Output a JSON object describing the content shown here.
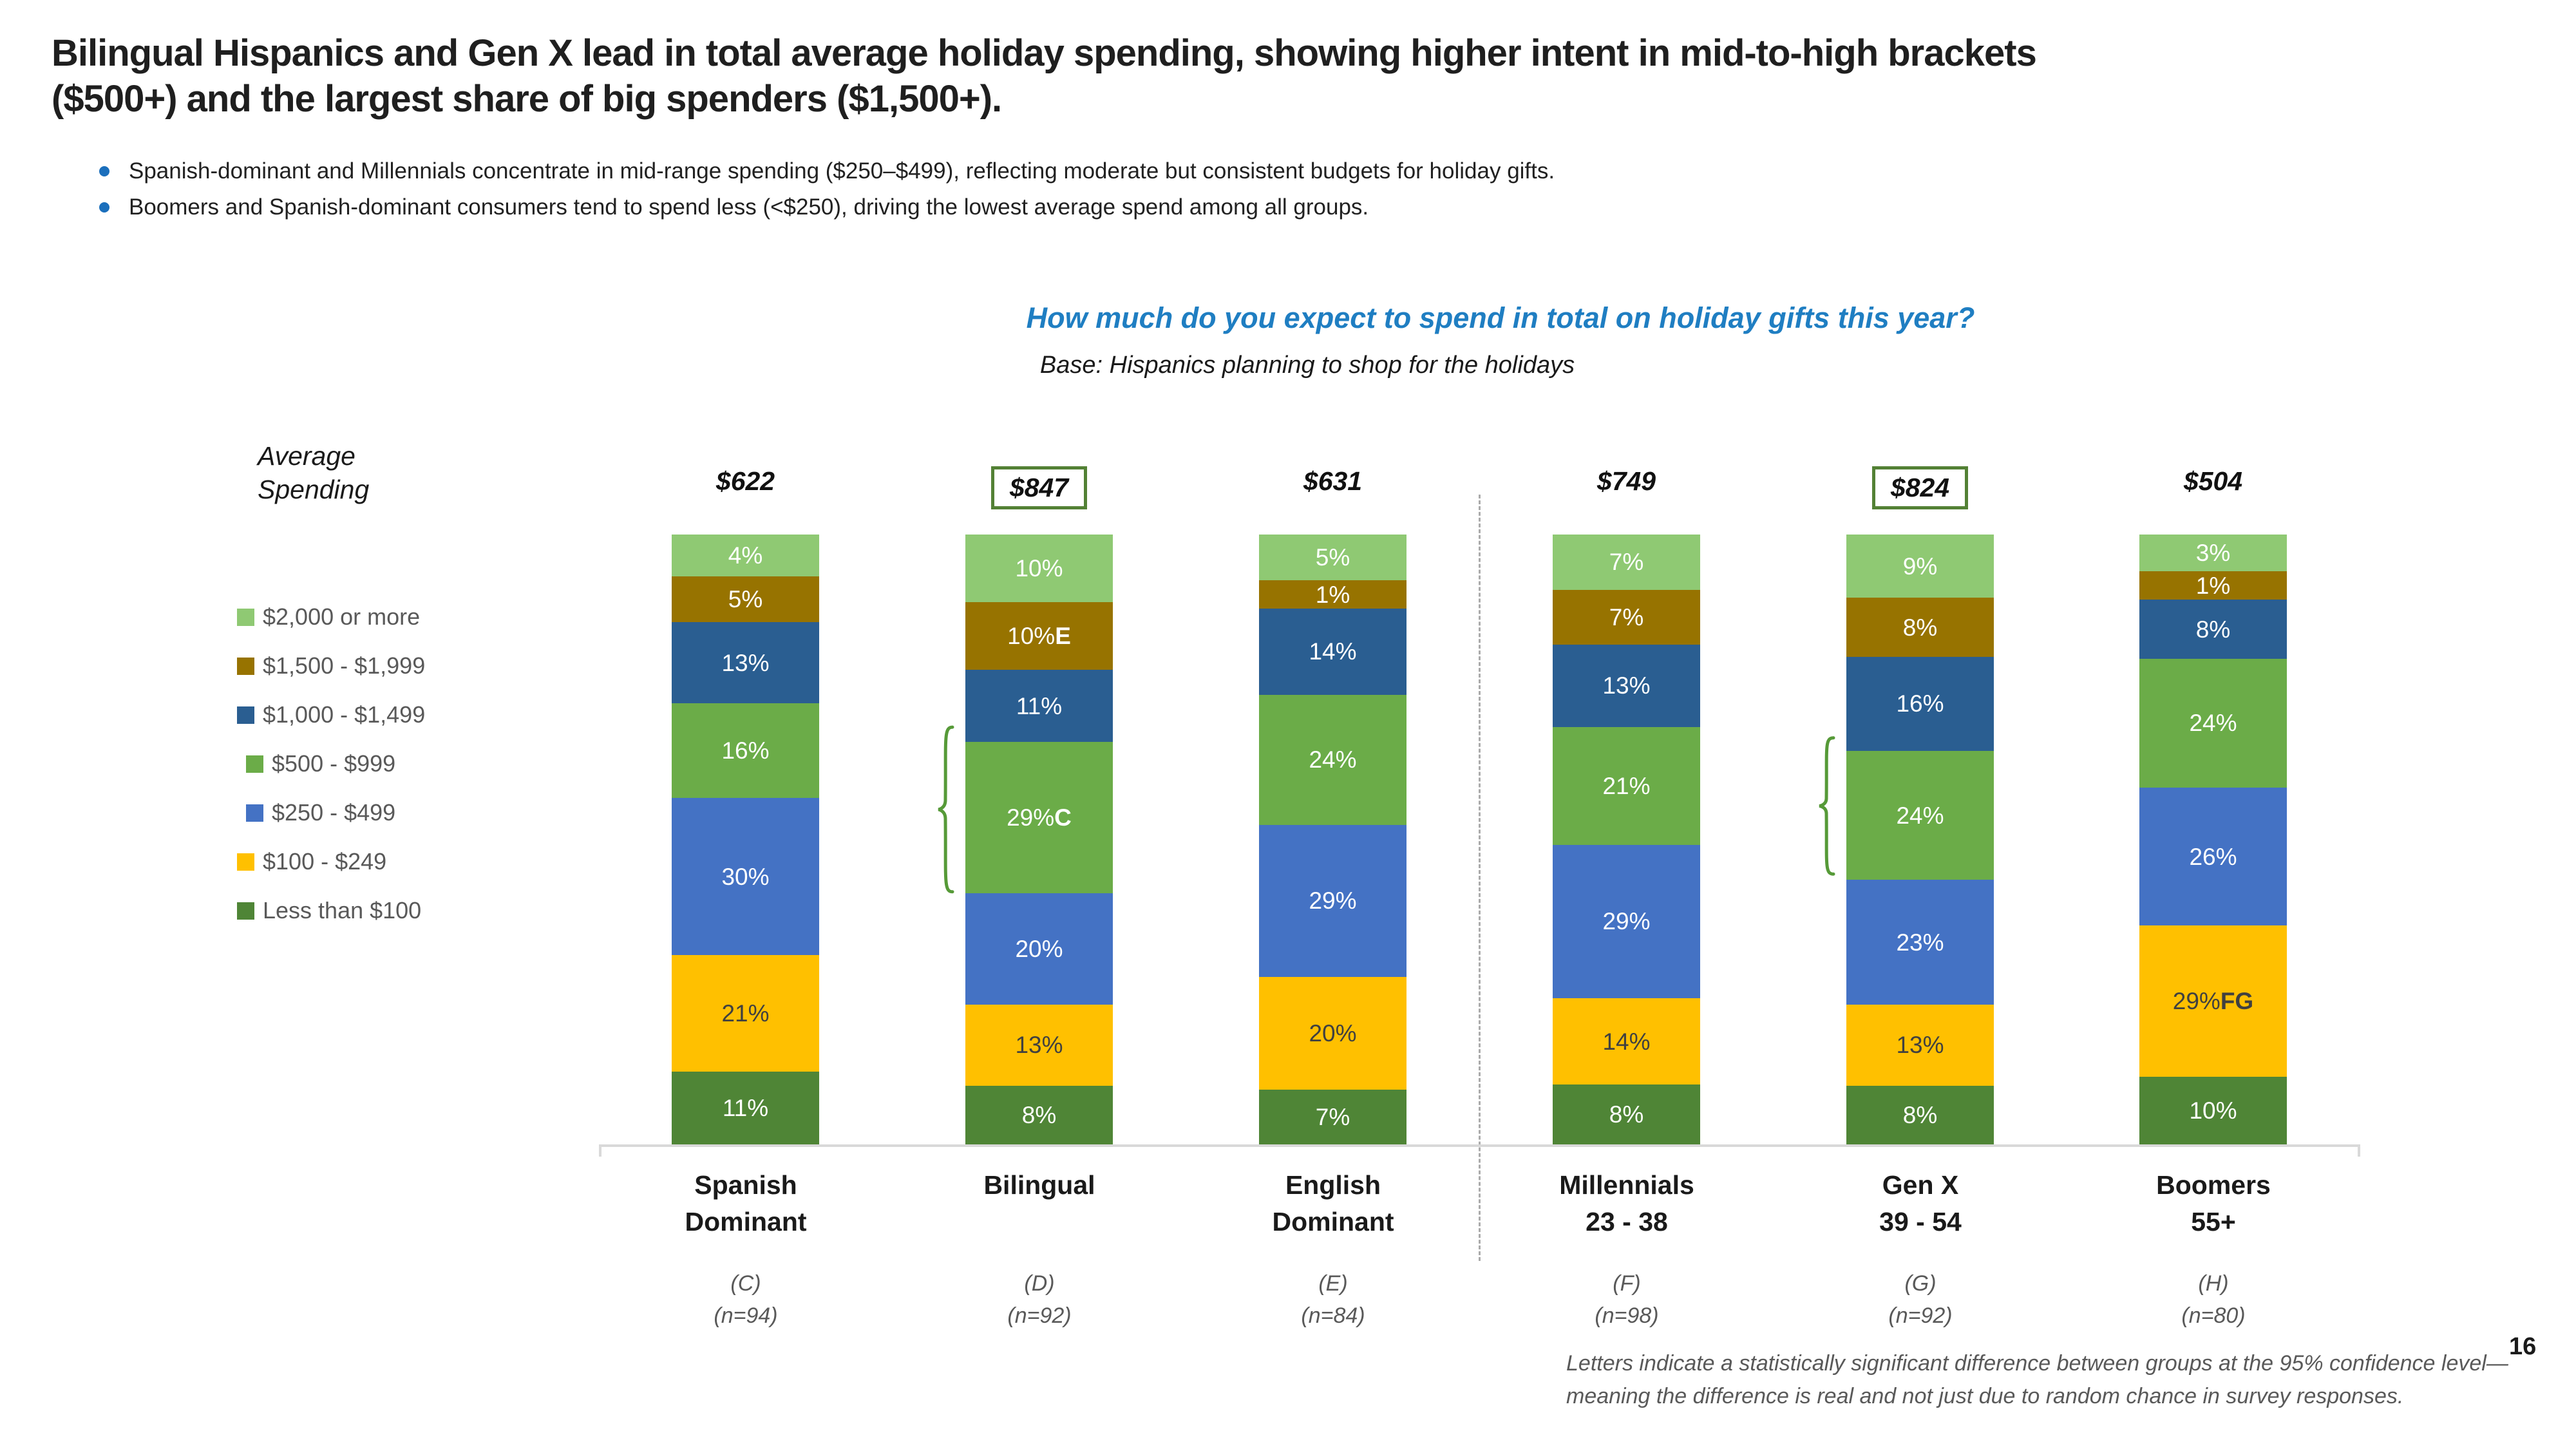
{
  "title": {
    "line1": "Bilingual Hispanics and Gen X lead in total average holiday spending, showing higher intent in mid-to-high brackets",
    "line2": "($500+) and the largest share of big spenders ($1,500+)."
  },
  "bullets": [
    "Spanish-dominant and Millennials concentrate in mid-range spending ($250–$499), reflecting moderate but consistent budgets for holiday gifts.",
    "Boomers and Spanish-dominant consumers tend to spend less (<$250), driving the lowest average spend among all groups."
  ],
  "question": "How much do you expect to spend in total on holiday gifts this year?",
  "base": "Base: Hispanics planning to shop for the holidays",
  "avg_label": {
    "line1": "Average",
    "line2": "Spending"
  },
  "legend": {
    "items": [
      {
        "label": "$2,000 or more",
        "color": "#8FC973"
      },
      {
        "label": "$1,500 - $1,999",
        "color": "#977300"
      },
      {
        "label": "$1,000 - $1,499",
        "color": "#2A5E91"
      },
      {
        "label": "$500 - $999",
        "color": "#6BAC48"
      },
      {
        "label": "$250 - $499",
        "color": "#4472C4"
      },
      {
        "label": "$100 - $249",
        "color": "#FFC000"
      },
      {
        "label": "Less than $100",
        "color": "#4F8536"
      }
    ]
  },
  "chart_data": {
    "type": "bar",
    "subtype": "100%-stacked-column",
    "unit": "%",
    "title": "How much do you expect to spend in total on holiday gifts this year?",
    "stack_order_top_to_bottom": [
      "$2,000 or more",
      "$1,500 - $1,999",
      "$1,000 - $1,499",
      "$500 - $999",
      "$250 - $499",
      "$100 - $249",
      "Less than $100"
    ],
    "groups": [
      {
        "name": [
          "Spanish",
          "Dominant"
        ],
        "code": "(C)",
        "n": "(n=94)",
        "average": "$622",
        "average_boxed": false,
        "values": [
          4,
          5,
          13,
          16,
          30,
          21,
          11
        ],
        "sig": [
          "",
          "",
          "",
          "",
          "",
          "",
          ""
        ]
      },
      {
        "name": [
          "Bilingual"
        ],
        "code": "(D)",
        "n": "(n=92)",
        "average": "$847",
        "average_boxed": true,
        "values": [
          10,
          10,
          11,
          29,
          20,
          13,
          8
        ],
        "sig": [
          "",
          "E",
          "",
          "C",
          "",
          "",
          ""
        ]
      },
      {
        "name": [
          "English",
          "Dominant"
        ],
        "code": "(E)",
        "n": "(n=84)",
        "average": "$631",
        "average_boxed": false,
        "values": [
          5,
          1,
          14,
          24,
          29,
          20,
          7
        ],
        "sig": [
          "",
          "",
          "",
          "",
          "",
          "",
          ""
        ]
      },
      {
        "name": [
          "Millennials",
          "23 - 38"
        ],
        "code": "(F)",
        "n": "(n=98)",
        "average": "$749",
        "average_boxed": false,
        "values": [
          7,
          7,
          13,
          21,
          29,
          14,
          8
        ],
        "sig": [
          "",
          "",
          "",
          "",
          "",
          "",
          ""
        ]
      },
      {
        "name": [
          "Gen X",
          "39 - 54"
        ],
        "code": "(G)",
        "n": "(n=92)",
        "average": "$824",
        "average_boxed": true,
        "values": [
          9,
          8,
          16,
          24,
          23,
          13,
          8
        ],
        "sig": [
          "",
          "",
          "",
          "",
          "",
          "",
          ""
        ]
      },
      {
        "name": [
          "Boomers",
          "55+"
        ],
        "code": "(H)",
        "n": "(n=80)",
        "average": "$504",
        "average_boxed": false,
        "values": [
          3,
          1,
          8,
          24,
          26,
          29,
          10
        ],
        "sig": [
          "",
          "",
          "",
          "",
          "",
          "FG",
          ""
        ]
      }
    ],
    "brackets": [
      {
        "group_index": 1,
        "segment_index": 3
      },
      {
        "group_index": 4,
        "segment_index": 3
      }
    ],
    "divider_after_group_index": 2,
    "legend_position": "left",
    "grid": false
  },
  "footnote": "Letters indicate a statistically significant difference between groups at the 95% confidence level—meaning the difference is real and not just due to random chance in survey responses.",
  "page_number": "16",
  "colors": {
    "segments": [
      "#8FC973",
      "#977300",
      "#2A5E91",
      "#6BAC48",
      "#4472C4",
      "#FFC000",
      "#4F8536"
    ],
    "question_blue": "#1F7EC2",
    "bullet_blue": "#1B6FBC",
    "box_green": "#538135",
    "bracket_green": "#569A38",
    "axis_gray": "#D9D9D9",
    "divider_gray": "#ABABAB",
    "gray_text": "#595959",
    "dark_label": "#404040",
    "white_label": "#FFFFFF"
  }
}
